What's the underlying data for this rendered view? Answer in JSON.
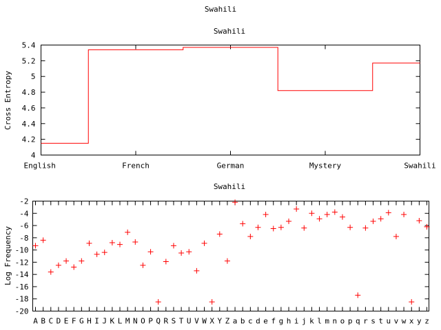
{
  "page_title": "Swahili",
  "chart_data": [
    {
      "type": "line",
      "step": true,
      "title": "Swahili",
      "xlabel": "",
      "ylabel": "Cross Entropy",
      "categories": [
        "English",
        "French",
        "German",
        "Mystery",
        "Swahili"
      ],
      "values": [
        4.15,
        5.34,
        5.37,
        4.82,
        5.17
      ],
      "ylim": [
        4,
        5.4
      ],
      "yticks": [
        "4",
        "4.2",
        "4.4",
        "4.6",
        "4.8",
        "5",
        "5.2",
        "5.4"
      ],
      "grid": false,
      "legend": "none",
      "color": "#ff0000"
    },
    {
      "type": "scatter",
      "marker": "+",
      "title": "Swahili",
      "xlabel": "",
      "ylabel": "Log Frequency",
      "categories": [
        "A",
        "B",
        "C",
        "D",
        "E",
        "F",
        "G",
        "H",
        "I",
        "J",
        "K",
        "L",
        "M",
        "N",
        "O",
        "P",
        "Q",
        "R",
        "S",
        "T",
        "U",
        "V",
        "W",
        "X",
        "Y",
        "Z",
        "a",
        "b",
        "c",
        "d",
        "e",
        "f",
        "g",
        "h",
        "i",
        "j",
        "k",
        "l",
        "m",
        "n",
        "o",
        "p",
        "q",
        "r",
        "s",
        "t",
        "u",
        "v",
        "w",
        "x",
        "y",
        "z"
      ],
      "values": [
        -9.3,
        -8.4,
        -13.6,
        -12.5,
        -11.8,
        -12.8,
        -11.8,
        -8.9,
        -10.7,
        -10.4,
        -8.8,
        -9.1,
        -7.1,
        -8.7,
        -12.5,
        -10.3,
        -18.5,
        -11.9,
        -9.3,
        -10.5,
        -10.3,
        -13.4,
        -8.9,
        -18.5,
        -7.4,
        -11.8,
        -2.2,
        -5.7,
        -7.8,
        -6.3,
        -4.2,
        -6.5,
        -6.3,
        -5.3,
        -3.3,
        -6.4,
        -4.0,
        -4.9,
        -4.2,
        -3.8,
        -4.6,
        -6.3,
        -17.4,
        -6.4,
        -5.3,
        -4.9,
        -3.9,
        -7.8,
        -4.2,
        -18.5,
        -5.2,
        -6.2
      ],
      "ylim": [
        -20,
        -2
      ],
      "yticks": [
        "-20",
        "-18",
        "-16",
        "-14",
        "-12",
        "-10",
        "-8",
        "-6",
        "-4",
        "-2"
      ],
      "grid": false,
      "legend": "none",
      "color": "#ff0000"
    }
  ]
}
